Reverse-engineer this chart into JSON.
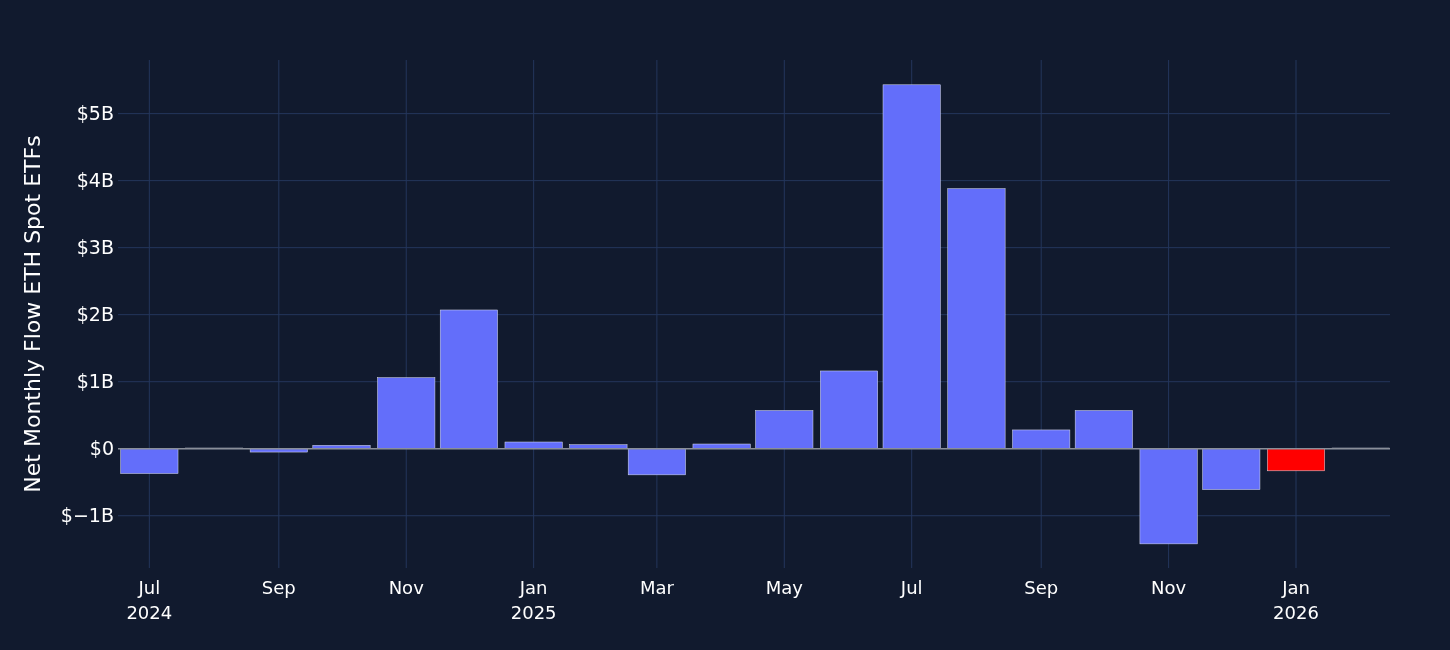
{
  "chart_data": {
    "type": "bar",
    "ylabel": "Net Monthly Flow ETH Spot ETFs",
    "x": [
      "2024-07",
      "2024-08",
      "2024-09",
      "2024-10",
      "2024-11",
      "2024-12",
      "2025-01",
      "2025-02",
      "2025-03",
      "2025-04",
      "2025-05",
      "2025-06",
      "2025-07",
      "2025-08",
      "2025-09",
      "2025-10",
      "2025-11",
      "2025-12",
      "2026-01",
      "2026-02"
    ],
    "values": [
      -0.37,
      0.01,
      -0.05,
      0.05,
      1.06,
      2.07,
      0.1,
      0.06,
      -0.39,
      0.07,
      0.57,
      1.16,
      5.43,
      3.88,
      0.28,
      0.57,
      -1.42,
      -0.61,
      -0.33,
      0.01
    ],
    "colors": [
      "#636efa",
      "#636efa",
      "#636efa",
      "#636efa",
      "#636efa",
      "#636efa",
      "#636efa",
      "#636efa",
      "#636efa",
      "#636efa",
      "#636efa",
      "#636efa",
      "#636efa",
      "#636efa",
      "#636efa",
      "#636efa",
      "#636efa",
      "#636efa",
      "#ff0000",
      "#636efa"
    ],
    "xlim": [
      "2024-06-16",
      "2026-02-15"
    ],
    "xticks": [
      {
        "value": "2024-07",
        "label": "Jul\n2024"
      },
      {
        "value": "2024-09",
        "label": "Sep"
      },
      {
        "value": "2024-11",
        "label": "Nov"
      },
      {
        "value": "2025-01",
        "label": "Jan\n2025"
      },
      {
        "value": "2025-03",
        "label": "Mar"
      },
      {
        "value": "2025-05",
        "label": "May"
      },
      {
        "value": "2025-07",
        "label": "Jul"
      },
      {
        "value": "2025-09",
        "label": "Sep"
      },
      {
        "value": "2025-11",
        "label": "Nov"
      },
      {
        "value": "2026-01",
        "label": "Jan\n2026"
      }
    ],
    "ylim": [
      -1.78,
      5.8
    ],
    "yticks": [
      {
        "value": -1,
        "label": "$−1B"
      },
      {
        "value": 0,
        "label": "$0"
      },
      {
        "value": 1,
        "label": "$1B"
      },
      {
        "value": 2,
        "label": "$2B"
      },
      {
        "value": 3,
        "label": "$3B"
      },
      {
        "value": 4,
        "label": "$4B"
      },
      {
        "value": 5,
        "label": "$5B"
      }
    ],
    "grid": true
  }
}
